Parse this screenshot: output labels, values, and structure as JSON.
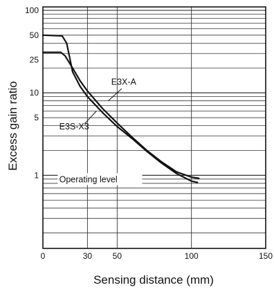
{
  "chart_data": {
    "type": "line",
    "title": "",
    "xlabel": "Sensing distance (mm)",
    "ylabel": "Excess gain ratio",
    "x_ticks": [
      0,
      30,
      50,
      100,
      150
    ],
    "y_ticks": [
      1,
      5,
      10,
      25,
      50,
      100
    ],
    "xlim": [
      0,
      150
    ],
    "ylim": [
      0.13,
      110
    ],
    "y_scale": "log",
    "grid": true,
    "legend": "none",
    "series": [
      {
        "name": "E3X-A",
        "x": [
          0,
          12,
          15,
          20,
          25,
          30,
          40,
          50,
          60,
          70,
          80,
          90,
          100,
          105
        ],
        "y": [
          31,
          31,
          28,
          20,
          14,
          10.5,
          6.5,
          4.3,
          2.9,
          2.0,
          1.45,
          1.1,
          0.95,
          0.92
        ]
      },
      {
        "name": "E3S-X3",
        "x": [
          0,
          13,
          16,
          18,
          20,
          25,
          30,
          40,
          50,
          60,
          70,
          80,
          90,
          100,
          104
        ],
        "y": [
          50,
          49,
          40,
          27,
          18,
          12,
          9,
          5.8,
          3.9,
          2.8,
          1.95,
          1.4,
          1.05,
          0.85,
          0.82
        ]
      }
    ],
    "annotations": [
      {
        "text": "E3X-A",
        "points_to_series": "E3X-A",
        "x": 44,
        "y": 8.0
      },
      {
        "text": "E3S-X3",
        "points_to_series": "E3S-X3",
        "x": 36,
        "y": 6.0
      },
      {
        "text": "Operating level",
        "refers_to_y": 1
      }
    ]
  }
}
